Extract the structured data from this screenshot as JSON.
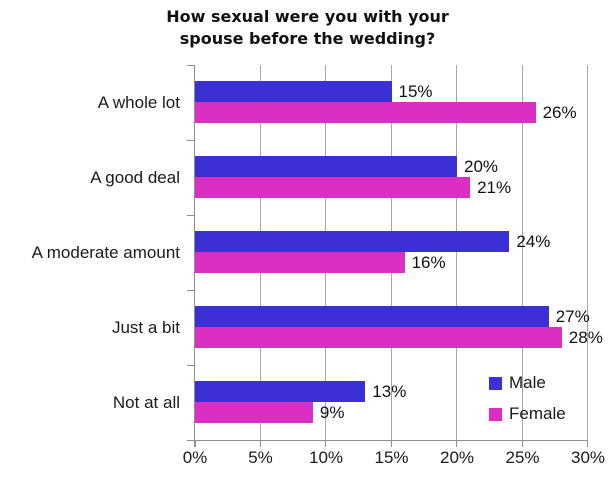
{
  "title": {
    "line1": "How sexual were you with your",
    "line2": "spouse before the wedding?"
  },
  "chart_data": {
    "type": "bar",
    "orientation": "horizontal",
    "title": "How sexual were you with your spouse before the wedding?",
    "categories": [
      "A whole lot",
      "A good deal",
      "A moderate amount",
      "Just a bit",
      "Not at all"
    ],
    "series": [
      {
        "name": "Male",
        "color": "#3c2fd4",
        "values": [
          15,
          20,
          24,
          27,
          13
        ]
      },
      {
        "name": "Female",
        "color": "#db2fc4",
        "values": [
          26,
          21,
          16,
          28,
          9
        ]
      }
    ],
    "value_suffix": "%",
    "xlim": [
      0,
      30
    ],
    "x_tick_labels": [
      "0%",
      "5%",
      "10%",
      "15%",
      "20%",
      "25%",
      "30%"
    ],
    "grid": true,
    "legend_position": "bottom-right",
    "colors": {
      "male": "#3c2fd4",
      "female": "#db2fc4",
      "gridline": "#a6a6a6",
      "axis": "#8f8f8f",
      "text": "#1a1a1a"
    }
  }
}
